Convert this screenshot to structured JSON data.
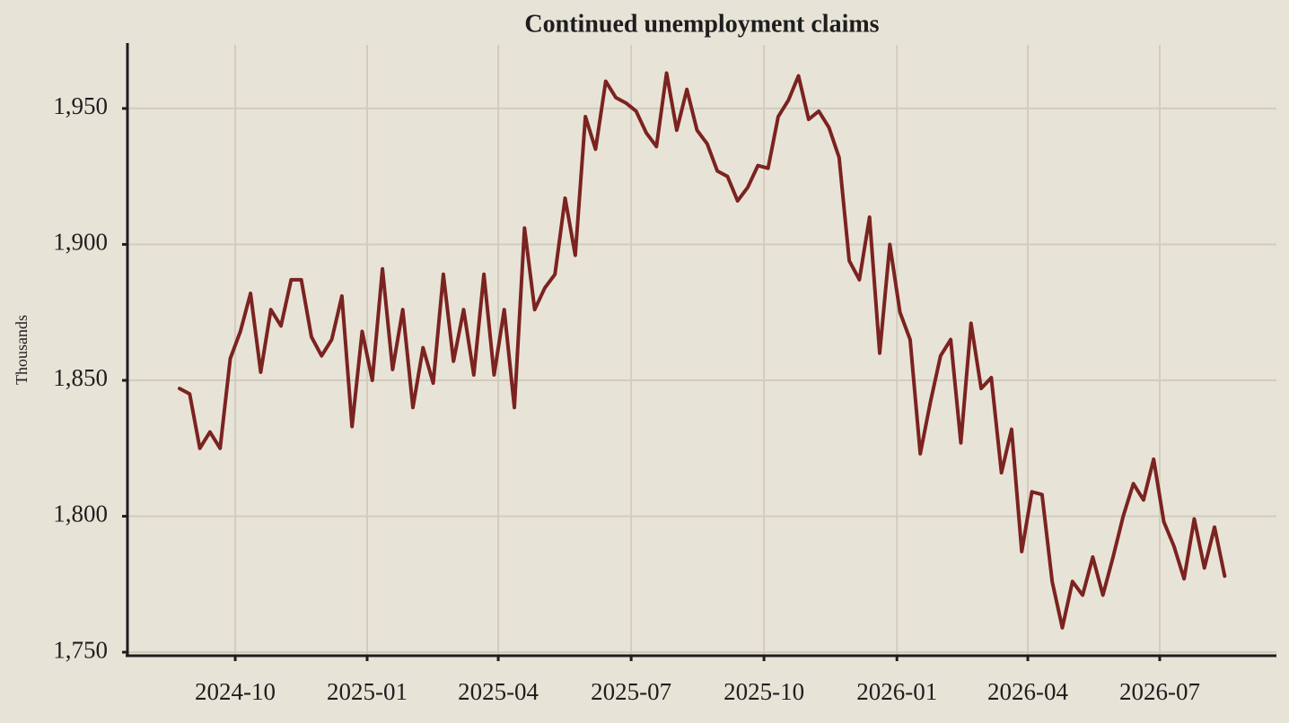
{
  "chart_data": {
    "type": "line",
    "title": "Continued unemployment claims",
    "ylabel": "Thousands",
    "grid": true,
    "xlim": [
      -5.13,
      108.1
    ],
    "xticks": [
      {
        "value": 5.49,
        "label": "2024-10"
      },
      {
        "value": 18.49,
        "label": "2025-01"
      },
      {
        "value": 31.41,
        "label": "2025-04"
      },
      {
        "value": 44.51,
        "label": "2025-07"
      },
      {
        "value": 57.6,
        "label": "2025-10"
      },
      {
        "value": 70.7,
        "label": "2026-01"
      },
      {
        "value": 83.6,
        "label": "2026-04"
      },
      {
        "value": 96.6,
        "label": "2026-07"
      }
    ],
    "ylim": [
      1748.7,
      1973.4
    ],
    "yticks": [
      {
        "value": 1750,
        "label": "1,750"
      },
      {
        "value": 1800,
        "label": "1,800"
      },
      {
        "value": 1850,
        "label": "1,850"
      },
      {
        "value": 1900,
        "label": "1,900"
      },
      {
        "value": 1950,
        "label": "1,950"
      }
    ],
    "series": [
      {
        "color": "#7b2320",
        "values": [
          1847,
          1845,
          1825,
          1831,
          1825,
          1858,
          1868,
          1882,
          1853,
          1876,
          1870,
          1887,
          1887,
          1866,
          1859,
          1865,
          1881,
          1833,
          1868,
          1850,
          1891,
          1854,
          1876,
          1840,
          1862,
          1849,
          1889,
          1857,
          1876,
          1852,
          1889,
          1852,
          1876,
          1840,
          1906,
          1876,
          1884,
          1889,
          1917,
          1896,
          1947,
          1935,
          1960,
          1954,
          1952,
          1949,
          1941,
          1936,
          1963,
          1942,
          1957,
          1942,
          1937,
          1927,
          1925,
          1916,
          1921,
          1929,
          1928,
          1947,
          1953,
          1962,
          1946,
          1949,
          1943,
          1932,
          1894,
          1887,
          1910,
          1860,
          1900,
          1875,
          1865,
          1823,
          1842,
          1859,
          1865,
          1827,
          1871,
          1847,
          1851,
          1816,
          1832,
          1787,
          1809,
          1808,
          1776,
          1759,
          1776,
          1771,
          1785,
          1771,
          1785,
          1800,
          1812,
          1806,
          1821,
          1798,
          1789,
          1777,
          1799,
          1781,
          1796,
          1778
        ]
      }
    ]
  }
}
